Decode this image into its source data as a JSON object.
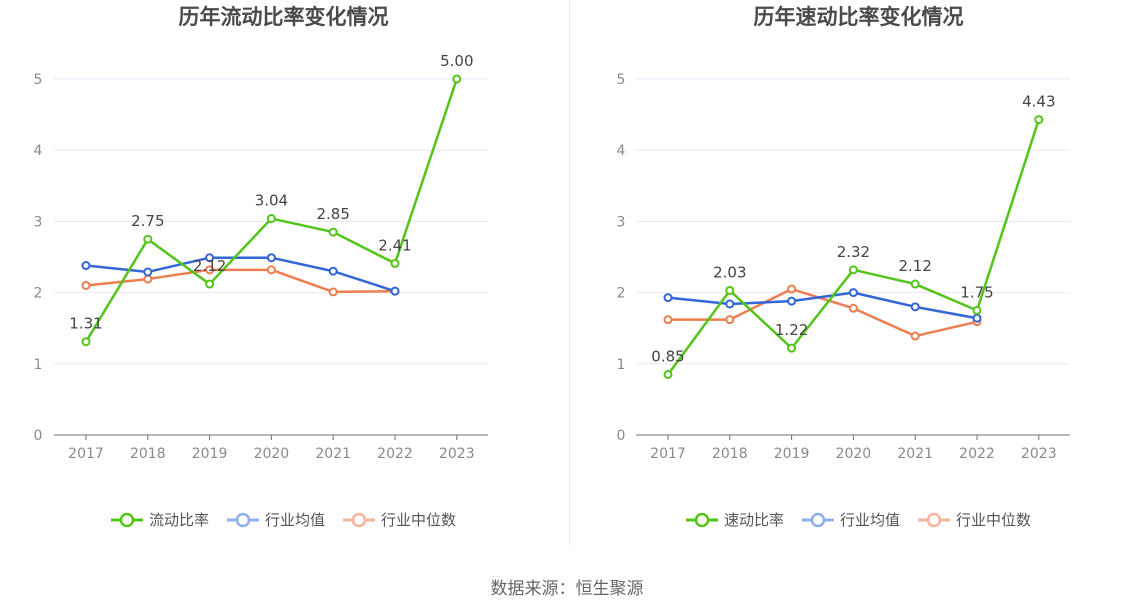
{
  "source": "数据来源：恒生聚源",
  "chart_data": [
    {
      "type": "line",
      "title": "历年流动比率变化情况",
      "categories": [
        "2017",
        "2018",
        "2019",
        "2020",
        "2021",
        "2022",
        "2023"
      ],
      "ylim": [
        0,
        5
      ],
      "yticks": [
        "0",
        "1",
        "2",
        "3",
        "4",
        "5"
      ],
      "grid": true,
      "legend_position": "bottom",
      "series": [
        {
          "name": "流动比率",
          "color": "#52c41a",
          "values": [
            1.31,
            2.75,
            2.12,
            3.04,
            2.85,
            2.41,
            5.0
          ],
          "labels": [
            "1.31",
            "2.75",
            "2.12",
            "3.04",
            "2.85",
            "2.41",
            "5.00"
          ]
        },
        {
          "name": "行业均值",
          "color": "#3366d6",
          "values": [
            2.38,
            2.29,
            2.49,
            2.49,
            2.3,
            2.02,
            null
          ]
        },
        {
          "name": "行业中位数",
          "color": "#ee7d4f",
          "values": [
            2.1,
            2.19,
            2.32,
            2.32,
            2.01,
            2.02,
            null
          ]
        }
      ]
    },
    {
      "type": "line",
      "title": "历年速动比率变化情况",
      "categories": [
        "2017",
        "2018",
        "2019",
        "2020",
        "2021",
        "2022",
        "2023"
      ],
      "ylim": [
        0,
        5
      ],
      "yticks": [
        "0",
        "1",
        "2",
        "3",
        "4",
        "5"
      ],
      "grid": true,
      "legend_position": "bottom",
      "series": [
        {
          "name": "速动比率",
          "color": "#52c41a",
          "values": [
            0.85,
            2.03,
            1.22,
            2.32,
            2.12,
            1.75,
            4.43
          ],
          "labels": [
            "0.85",
            "2.03",
            "1.22",
            "2.32",
            "2.12",
            "1.75",
            "4.43"
          ]
        },
        {
          "name": "行业均值",
          "color": "#3366d6",
          "values": [
            1.93,
            1.84,
            1.88,
            2.0,
            1.8,
            1.64,
            null
          ]
        },
        {
          "name": "行业中位数",
          "color": "#ee7d4f",
          "values": [
            1.62,
            1.62,
            2.05,
            1.78,
            1.39,
            1.59,
            null
          ]
        }
      ]
    }
  ]
}
